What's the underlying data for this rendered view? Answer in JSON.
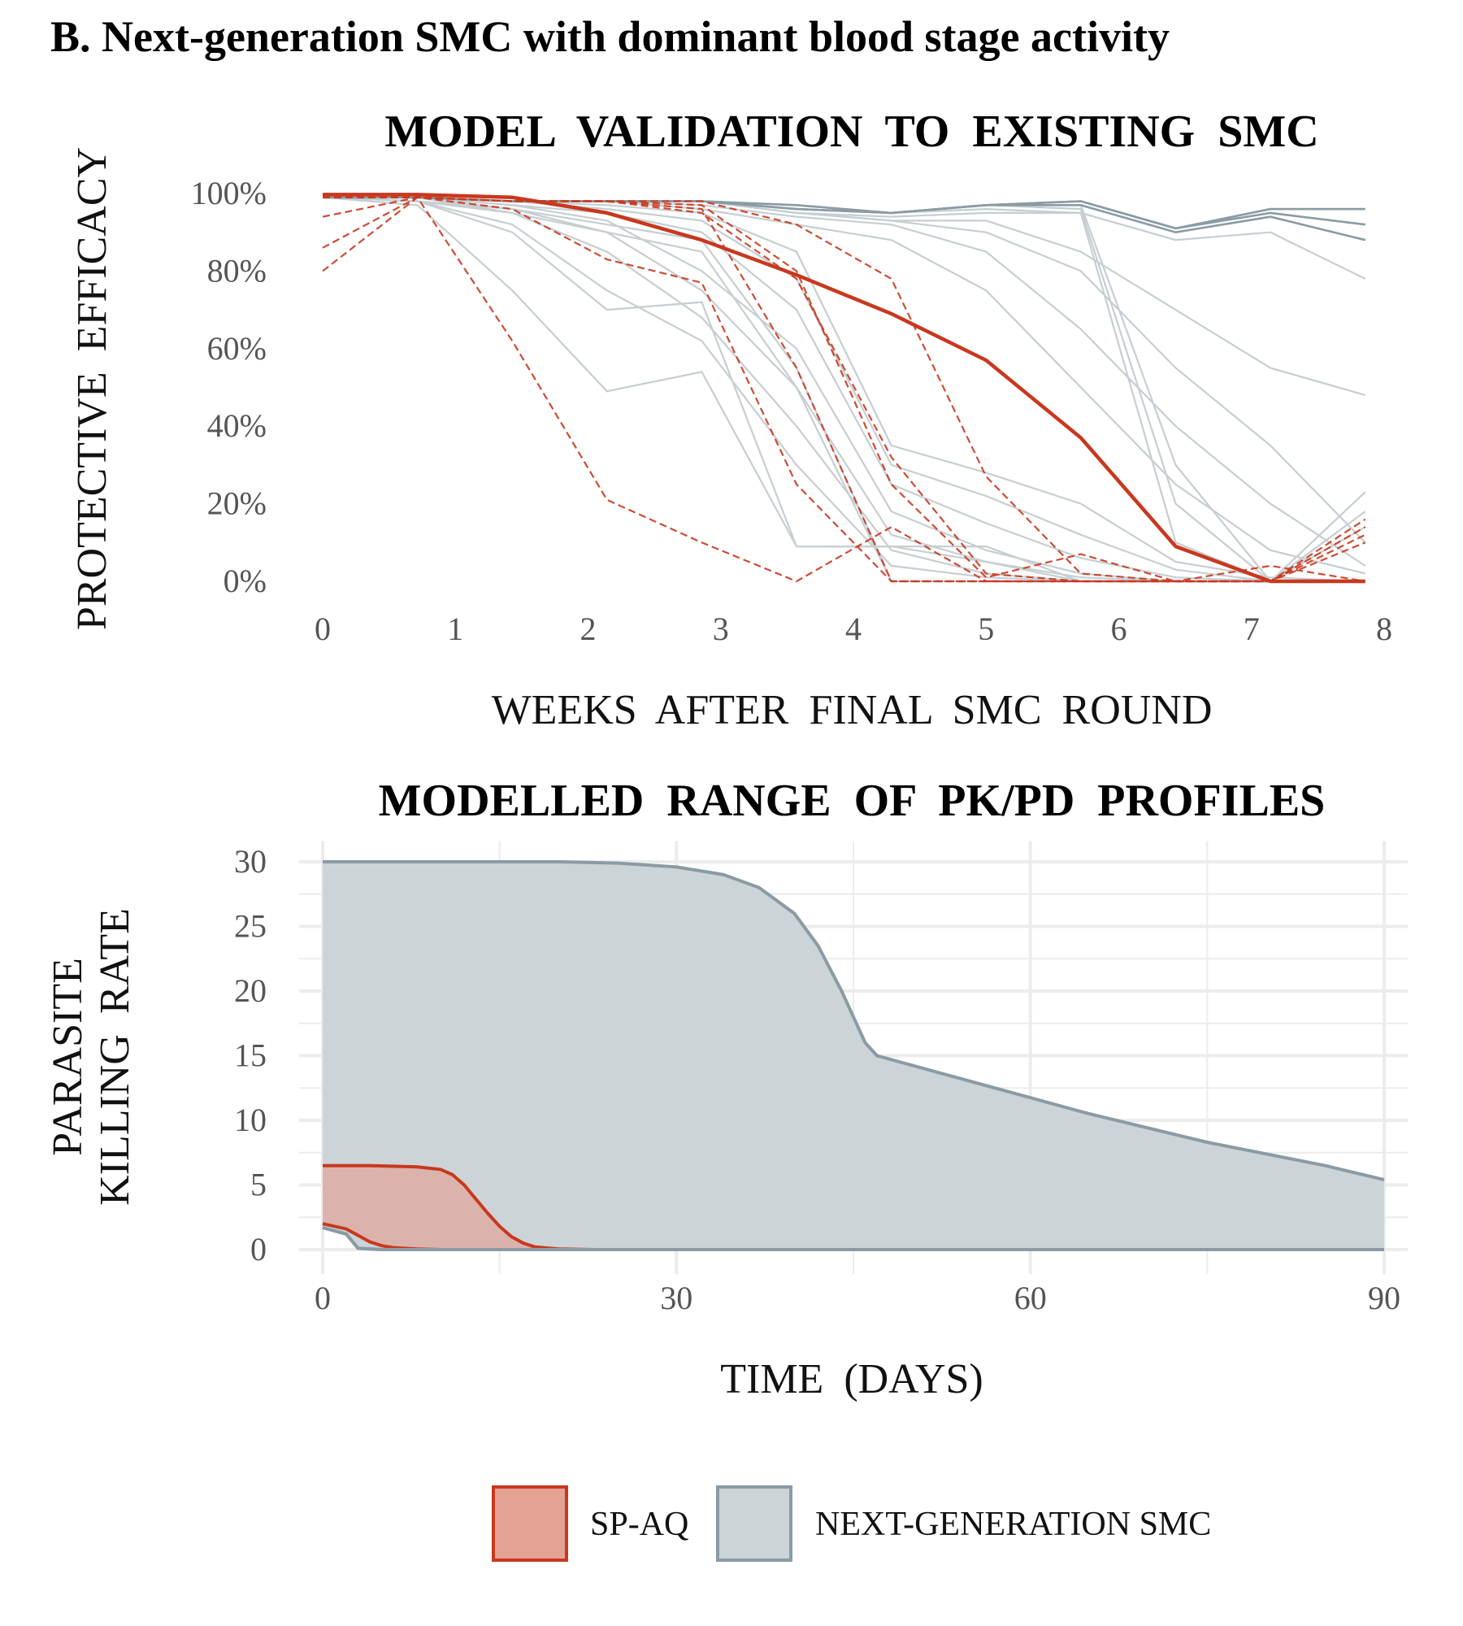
{
  "figure": {
    "title": "B. Next-generation SMC with dominant blood stage activity"
  },
  "colors": {
    "sp_aq": "#c8381e",
    "sp_aq_fill": "#e4a295",
    "next_gen": "#8a9ba3",
    "next_gen_fill": "#ccd4d7",
    "gray_lines": "#c6ced2",
    "grid": "#ececec"
  },
  "legend": {
    "items": [
      {
        "label": "SP-AQ",
        "color_key": "sp_aq",
        "fill_key": "sp_aq_fill"
      },
      {
        "label": "NEXT-GENERATION SMC",
        "color_key": "next_gen",
        "fill_key": "next_gen_fill"
      }
    ]
  },
  "chart_data": [
    {
      "type": "line",
      "title": "MODEL VALIDATION TO EXISTING SMC",
      "xlabel": "WEEKS AFTER FINAL SMC ROUND",
      "ylabel": "PROTECTIVE EFFICACY",
      "xlim": [
        0,
        8
      ],
      "ylim": [
        0,
        1
      ],
      "x_ticks": [
        "0",
        "1",
        "2",
        "3",
        "4",
        "5",
        "6",
        "7",
        "8"
      ],
      "y_ticks": [
        "0%",
        "20%",
        "40%",
        "60%",
        "80%",
        "100%"
      ],
      "grid": false,
      "x": [
        0,
        0.714,
        1.429,
        2.143,
        2.857,
        3.571,
        4.286,
        5.0,
        5.714,
        6.429,
        7.143,
        7.857
      ],
      "gray_series": [
        [
          0.99,
          0.99,
          0.98,
          0.98,
          0.98,
          0.97,
          0.95,
          0.97,
          0.98,
          0.91,
          0.96,
          0.96
        ],
        [
          0.99,
          0.99,
          0.98,
          0.98,
          0.98,
          0.96,
          0.95,
          0.97,
          0.98,
          0.91,
          0.95,
          0.92
        ],
        [
          0.99,
          0.99,
          0.98,
          0.98,
          0.98,
          0.96,
          0.95,
          0.97,
          0.97,
          0.9,
          0.94,
          0.88
        ],
        [
          0.99,
          0.99,
          0.98,
          0.98,
          0.98,
          0.95,
          0.94,
          0.95,
          0.95,
          0.88,
          0.9,
          0.78
        ],
        [
          0.99,
          0.99,
          0.98,
          0.98,
          0.98,
          0.95,
          0.93,
          0.93,
          0.85,
          0.7,
          0.55,
          0.48
        ],
        [
          0.99,
          0.99,
          0.98,
          0.98,
          0.98,
          0.95,
          0.93,
          0.9,
          0.8,
          0.55,
          0.35,
          0.1
        ],
        [
          0.99,
          0.99,
          0.98,
          0.98,
          0.97,
          0.94,
          0.92,
          0.85,
          0.65,
          0.4,
          0.2,
          0.04
        ],
        [
          0.99,
          0.99,
          0.98,
          0.98,
          0.96,
          0.92,
          0.88,
          0.75,
          0.5,
          0.25,
          0.08,
          0.02
        ],
        [
          0.99,
          0.99,
          0.98,
          0.97,
          0.95,
          0.85,
          0.35,
          0.28,
          0.2,
          0.05,
          0.01,
          0.0
        ],
        [
          0.99,
          0.99,
          0.98,
          0.96,
          0.93,
          0.78,
          0.3,
          0.22,
          0.12,
          0.03,
          0.0,
          0.0
        ],
        [
          0.99,
          0.99,
          0.97,
          0.95,
          0.9,
          0.7,
          0.25,
          0.15,
          0.06,
          0.01,
          0.0,
          0.0
        ],
        [
          0.99,
          0.99,
          0.97,
          0.93,
          0.8,
          0.6,
          0.18,
          0.08,
          0.02,
          0.0,
          0.0,
          0.0
        ],
        [
          0.99,
          0.99,
          0.96,
          0.9,
          0.75,
          0.5,
          0.12,
          0.05,
          0.01,
          0.0,
          0.0,
          0.0
        ],
        [
          0.99,
          0.99,
          0.95,
          0.85,
          0.68,
          0.4,
          0.08,
          0.02,
          0.0,
          0.0,
          0.0,
          0.0
        ],
        [
          0.99,
          0.98,
          0.92,
          0.75,
          0.62,
          0.3,
          0.04,
          0.01,
          0.0,
          0.0,
          0.0,
          0.0
        ],
        [
          0.99,
          0.98,
          0.9,
          0.7,
          0.72,
          0.09,
          0.09,
          0.09,
          0.0,
          0.0,
          0.0,
          0.0
        ],
        [
          0.99,
          0.97,
          0.75,
          0.49,
          0.54,
          0.09,
          0.09,
          0.05,
          0.0,
          0.0,
          0.0,
          0.0
        ],
        [
          0.99,
          0.98,
          0.96,
          0.92,
          0.88,
          0.55,
          0.0,
          0.0,
          0.0,
          0.0,
          0.0,
          0.0
        ],
        [
          0.99,
          0.98,
          0.95,
          0.9,
          0.85,
          0.5,
          0.0,
          0.0,
          0.0,
          0.0,
          0.0,
          0.0
        ],
        [
          0.99,
          0.99,
          0.98,
          0.98,
          0.98,
          0.97,
          0.95,
          0.97,
          0.97,
          0.3,
          0.0,
          0.23
        ],
        [
          0.99,
          0.99,
          0.98,
          0.98,
          0.98,
          0.97,
          0.95,
          0.97,
          0.96,
          0.2,
          0.0,
          0.18
        ],
        [
          0.99,
          0.99,
          0.98,
          0.98,
          0.98,
          0.97,
          0.95,
          0.96,
          0.95,
          0.1,
          0.0,
          0.14
        ]
      ],
      "sp_aq_mean": [
        0.997,
        0.997,
        0.99,
        0.95,
        0.88,
        0.79,
        0.69,
        0.57,
        0.37,
        0.09,
        0.0,
        0.0
      ],
      "sp_aq_runs": [
        [
          0.8,
          0.99,
          0.62,
          0.21,
          0.1,
          0.0,
          0.14,
          0.0,
          0.0,
          0.0,
          0.0,
          0.1
        ],
        [
          0.86,
          0.99,
          0.96,
          0.83,
          0.77,
          0.25,
          0.0,
          0.0,
          0.0,
          0.0,
          0.04,
          0.0
        ],
        [
          0.94,
          0.99,
          0.98,
          0.98,
          0.98,
          0.92,
          0.78,
          0.27,
          0.02,
          0.0,
          0.0,
          0.14
        ],
        [
          0.99,
          0.99,
          0.98,
          0.98,
          0.95,
          0.78,
          0.32,
          0.02,
          0.0,
          0.0,
          0.0,
          0.12
        ],
        [
          0.99,
          0.99,
          0.98,
          0.98,
          0.96,
          0.55,
          0.0,
          0.0,
          0.0,
          0.0,
          0.0,
          0.0
        ],
        [
          0.99,
          0.99,
          0.98,
          0.98,
          0.97,
          0.8,
          0.25,
          0.01,
          0.07,
          0.0,
          0.0,
          0.16
        ]
      ]
    },
    {
      "type": "area",
      "title": "MODELLED RANGE OF PK/PD PROFILES",
      "xlabel": "TIME (DAYS)",
      "ylabel": "PARASITE KILLING RATE",
      "ylabel_lines": [
        "PARASITE",
        "KILLING RATE"
      ],
      "xlim": [
        0,
        90
      ],
      "ylim": [
        0,
        30
      ],
      "x_ticks": [
        "0",
        "30",
        "60",
        "90"
      ],
      "y_ticks": [
        "0",
        "5",
        "10",
        "15",
        "20",
        "25",
        "30"
      ],
      "grid": true,
      "series": [
        {
          "name": "NEXT-GENERATION SMC",
          "upper": {
            "x": [
              0,
              10,
              20,
              25,
              30,
              34,
              37,
              40,
              42,
              44,
              46,
              47,
              55,
              65,
              75,
              85,
              90
            ],
            "y": [
              30,
              30,
              30,
              29.9,
              29.6,
              29,
              28,
              26,
              23.5,
              20,
              16,
              15,
              13,
              10.5,
              8.3,
              6.5,
              5.4
            ]
          },
          "lower": {
            "x": [
              0,
              2,
              3,
              5,
              90
            ],
            "y": [
              1.7,
              1.2,
              0.1,
              0,
              0
            ]
          }
        },
        {
          "name": "SP-AQ",
          "upper": {
            "x": [
              0,
              4,
              8,
              10,
              11,
              12,
              13,
              14,
              15,
              16,
              17,
              18,
              20,
              23,
              90
            ],
            "y": [
              6.5,
              6.5,
              6.4,
              6.2,
              5.8,
              5.0,
              3.9,
              2.8,
              1.8,
              1.0,
              0.5,
              0.2,
              0.05,
              0,
              0
            ]
          },
          "lower": {
            "x": [
              0,
              2,
              3,
              4,
              5,
              6,
              8,
              10,
              90
            ],
            "y": [
              2.0,
              1.6,
              1.1,
              0.6,
              0.3,
              0.15,
              0.05,
              0,
              0
            ]
          }
        }
      ]
    }
  ]
}
